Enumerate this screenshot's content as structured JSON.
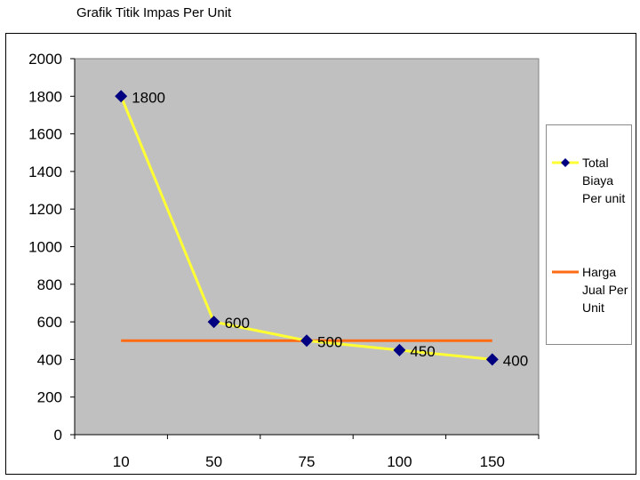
{
  "title": "Grafik Titik Impas Per Unit",
  "colors": {
    "plot_background": "#c0c0c0",
    "cost_line": "#ffff33",
    "marker": "#000080",
    "price_line": "#ff6a13"
  },
  "chart_data": {
    "type": "line",
    "title": "Grafik Titik Impas Per Unit",
    "categories": [
      "10",
      "50",
      "75",
      "100",
      "150"
    ],
    "ylim": [
      0,
      2000
    ],
    "yticks": [
      0,
      200,
      400,
      600,
      800,
      1000,
      1200,
      1400,
      1600,
      1800,
      2000
    ],
    "grid": false,
    "legend_position": "right",
    "series": [
      {
        "name": "Total Biaya Per unit",
        "values": [
          1800,
          600,
          500,
          450,
          400
        ],
        "data_labels": [
          "1800",
          "600",
          "500",
          "450",
          "400"
        ],
        "color": "#ffff33",
        "marker": "diamond",
        "marker_color": "#000080"
      },
      {
        "name": "Harga Jual Per Unit",
        "values": [
          500,
          500,
          500,
          500,
          500
        ],
        "color": "#ff6a13",
        "marker": "none"
      }
    ]
  },
  "legend": {
    "items": [
      {
        "lines": [
          "Total",
          "Biaya",
          "Per unit"
        ]
      },
      {
        "lines": [
          "Harga",
          "Jual Per",
          "Unit"
        ]
      }
    ]
  }
}
